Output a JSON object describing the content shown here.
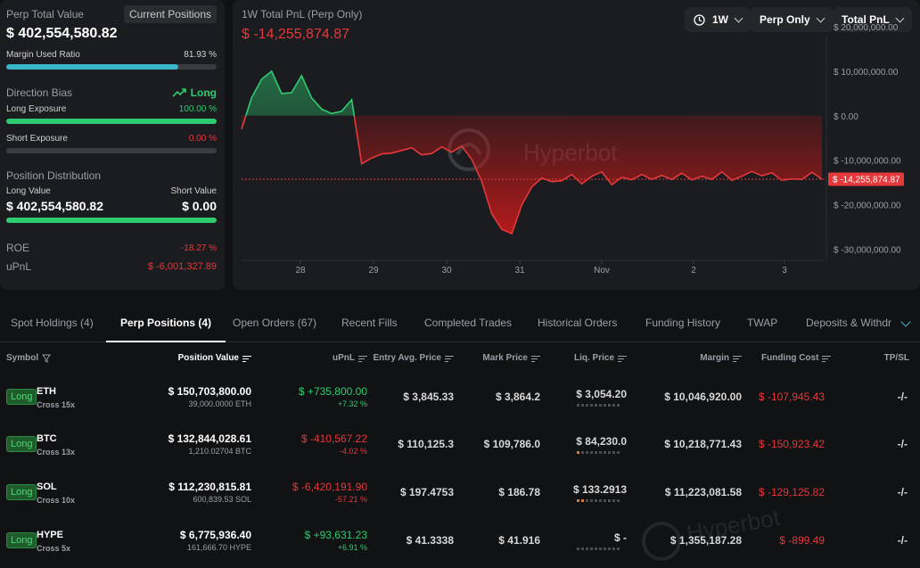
{
  "summary": {
    "perp_total_label": "Perp Total Value",
    "current_positions_label": "Current Positions",
    "perp_total_value": "$ 402,554,580.82",
    "margin_used_label": "Margin Used Ratio",
    "margin_used_value": "81.93 %",
    "margin_used_fraction": 0.8193,
    "direction_bias_label": "Direction Bias",
    "direction_bias_value": "Long",
    "long_exposure_label": "Long Exposure",
    "long_exposure_value": "100.00 %",
    "long_exposure_fraction": 1.0,
    "short_exposure_label": "Short Exposure",
    "short_exposure_value": "0.00 %",
    "short_exposure_fraction": 0.0,
    "position_distribution_label": "Position Distribution",
    "long_value_label": "Long Value",
    "short_value_label": "Short Value",
    "long_value": "$ 402,554,580.82",
    "short_value": "$ 0.00",
    "long_value_fraction": 1.0,
    "roe_label": "ROE",
    "roe_value": "-18.27 %",
    "upnl_label": "uPnL",
    "upnl_value": "$ -6,001,327.89"
  },
  "chart_header": {
    "title": "1W Total PnL (Perp Only)",
    "value": "$ -14,255,874.87",
    "range_button": "1W",
    "filter_button": "Perp Only",
    "metric_button": "Total PnL",
    "watermark": "Hyperbot",
    "current_tag": "$ -14,255,874.87"
  },
  "chart_data": {
    "type": "area",
    "x_tick_labels": [
      "28",
      "29",
      "30",
      "31",
      "Nov",
      "2",
      "3"
    ],
    "y_tick_labels": [
      "$ 20,000,000.00",
      "$ 10,000,000.00",
      "$ 0.00",
      "$ -10,000,000.00",
      "$ -20,000,000.00",
      "$ -30,000,000.00"
    ],
    "ylim": [
      -32500000,
      20000000
    ],
    "current_value": -14255874.87,
    "series": [
      {
        "values": [
          -3000000,
          4000000,
          8200000,
          10000000,
          5000000,
          5200000,
          9000000,
          4000000,
          1500000,
          500000,
          1000000,
          3600000,
          -10800000,
          -9500000,
          -8600000,
          -8400000,
          -7800000,
          -7200000,
          -8800000,
          -8500000,
          -7000000,
          -8200000,
          -6800000,
          -9800000,
          -14800000,
          -22000000,
          -25500000,
          -26500000,
          -20000000,
          -16000000,
          -14000000,
          -14800000,
          -14600000,
          -13200000,
          -15300000,
          -13600000,
          -12600000,
          -15500000,
          -13800000,
          -14400000,
          -13200000,
          -14300000,
          -13400000,
          -14300000,
          -12900000,
          -14400000,
          -13600000,
          -14300000,
          -12600000,
          -14500000,
          -13600000,
          -12500000,
          -13500000,
          -12800000,
          -14500000,
          -14200000,
          -14300000,
          -12700000,
          -14255874.87
        ]
      }
    ]
  },
  "tabs": [
    {
      "label": "Spot Holdings (4)",
      "active": false
    },
    {
      "label": "Perp Positions (4)",
      "active": true
    },
    {
      "label": "Open Orders (67)",
      "active": false
    },
    {
      "label": "Recent Fills",
      "active": false
    },
    {
      "label": "Completed Trades",
      "active": false
    },
    {
      "label": "Historical Orders",
      "active": false
    },
    {
      "label": "Funding History",
      "active": false
    },
    {
      "label": "TWAP",
      "active": false
    },
    {
      "label": "Deposits & Withdra",
      "active": false
    }
  ],
  "table": {
    "headers": {
      "symbol": "Symbol",
      "position_value": "Position Value",
      "upnl": "uPnL",
      "entry": "Entry Avg. Price",
      "mark": "Mark Price",
      "liq": "Liq. Price",
      "margin": "Margin",
      "funding": "Funding Cost",
      "tpsl": "TP/SL"
    },
    "rows": [
      {
        "side": "Long",
        "symbol": "ETH",
        "mode": "Cross 15x",
        "position_value": "$ 150,703,800.00",
        "size": "39,000.0000 ETH",
        "upnl": "$ +735,800.00",
        "upnl_pct": "+7.32 %",
        "upnl_positive": true,
        "entry": "$ 3,845.33",
        "mark": "$ 3,864.2",
        "liq": "$ 3,054.20",
        "liq_risk": 0,
        "margin": "$ 10,046,920.00",
        "funding": "$ -107,945.43",
        "tpsl": "-/-"
      },
      {
        "side": "Long",
        "symbol": "BTC",
        "mode": "Cross 13x",
        "position_value": "$ 132,844,028.61",
        "size": "1,210.02704 BTC",
        "upnl": "$ -410,567.22",
        "upnl_pct": "-4.02 %",
        "upnl_positive": false,
        "entry": "$ 110,125.3",
        "mark": "$ 109,786.0",
        "liq": "$ 84,230.0",
        "liq_risk": 1,
        "margin": "$ 10,218,771.43",
        "funding": "$ -150,923.42",
        "tpsl": "-/-"
      },
      {
        "side": "Long",
        "symbol": "SOL",
        "mode": "Cross 10x",
        "position_value": "$ 112,230,815.81",
        "size": "600,839.53 SOL",
        "upnl": "$ -6,420,191.90",
        "upnl_pct": "-57.21 %",
        "upnl_positive": false,
        "entry": "$ 197.4753",
        "mark": "$ 186.78",
        "liq": "$ 133.2913",
        "liq_risk": 2,
        "margin": "$ 11,223,081.58",
        "funding": "$ -129,125.82",
        "tpsl": "-/-"
      },
      {
        "side": "Long",
        "symbol": "HYPE",
        "mode": "Cross 5x",
        "position_value": "$ 6,775,936.40",
        "size": "161,666.70 HYPE",
        "upnl": "$ +93,631.23",
        "upnl_pct": "+6.91 %",
        "upnl_positive": true,
        "entry": "$ 41.3338",
        "mark": "$ 41.916",
        "liq": "$ -",
        "liq_risk": 0,
        "margin": "$ 1,355,187.28",
        "funding": "$ -899.49",
        "tpsl": "-/-"
      }
    ]
  },
  "colors": {
    "accent_cyan": "#39b7c9",
    "green": "#2ecc71",
    "red": "#e5383b"
  }
}
